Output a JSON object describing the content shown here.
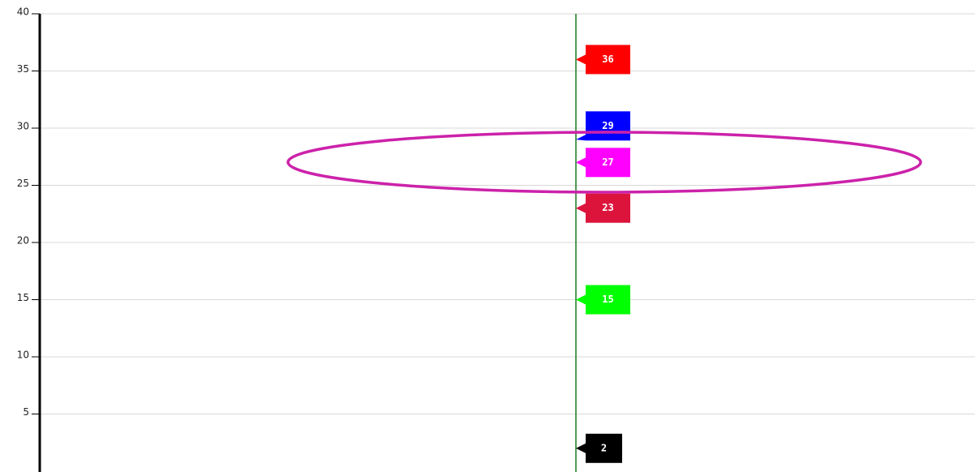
{
  "chart_data": {
    "type": "flag",
    "values": [
      36,
      29,
      27,
      23,
      15,
      2
    ],
    "colors": [
      "#ff0000",
      "#0000ff",
      "#ff00ff",
      "#dc143c",
      "#00ff00",
      "#000000"
    ],
    "ylim": [
      0,
      40
    ],
    "yticks": [
      5,
      10,
      15,
      20,
      25,
      30,
      35,
      40
    ],
    "grid": true
  }
}
